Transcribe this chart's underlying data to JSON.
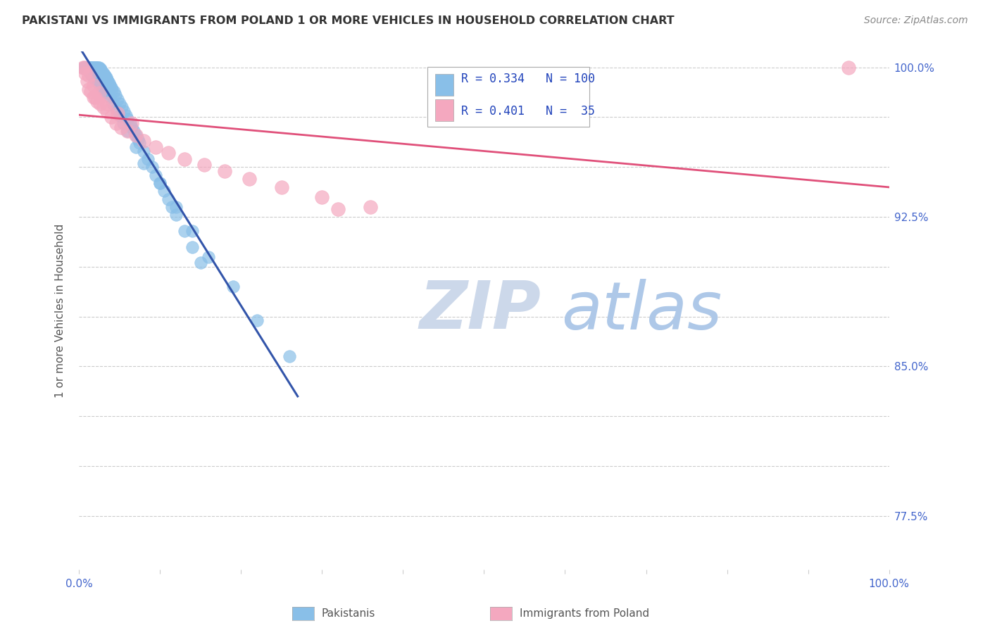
{
  "title": "PAKISTANI VS IMMIGRANTS FROM POLAND 1 OR MORE VEHICLES IN HOUSEHOLD CORRELATION CHART",
  "source": "Source: ZipAtlas.com",
  "ylabel": "1 or more Vehicles in Household",
  "xlim": [
    0.0,
    1.0
  ],
  "ylim": [
    0.748,
    1.008
  ],
  "ytick_vals": [
    0.775,
    0.8,
    0.825,
    0.85,
    0.875,
    0.9,
    0.925,
    0.95,
    0.975,
    1.0
  ],
  "ytick_labels": [
    "77.5%",
    "",
    "",
    "85.0%",
    "",
    "",
    "92.5%",
    "",
    "",
    "100.0%"
  ],
  "r_blue": 0.334,
  "n_blue": 100,
  "r_pink": 0.401,
  "n_pink": 35,
  "dot_color_blue": "#89bfe8",
  "dot_color_pink": "#f4a8bf",
  "line_color_blue": "#3355aa",
  "line_color_pink": "#e0507a",
  "legend_label_blue": "Pakistanis",
  "legend_label_pink": "Immigrants from Poland",
  "background_color": "#ffffff",
  "watermark_zip": "#ccd8ea",
  "watermark_atlas": "#aec8e8",
  "blue_x": [
    0.005,
    0.007,
    0.008,
    0.009,
    0.01,
    0.01,
    0.01,
    0.011,
    0.012,
    0.013,
    0.013,
    0.014,
    0.015,
    0.015,
    0.016,
    0.017,
    0.018,
    0.018,
    0.019,
    0.02,
    0.02,
    0.021,
    0.022,
    0.022,
    0.023,
    0.024,
    0.025,
    0.025,
    0.026,
    0.027,
    0.028,
    0.028,
    0.029,
    0.03,
    0.031,
    0.032,
    0.033,
    0.034,
    0.035,
    0.036,
    0.037,
    0.038,
    0.04,
    0.041,
    0.043,
    0.045,
    0.048,
    0.05,
    0.053,
    0.056,
    0.058,
    0.06,
    0.063,
    0.065,
    0.068,
    0.07,
    0.073,
    0.075,
    0.08,
    0.085,
    0.09,
    0.095,
    0.1,
    0.105,
    0.11,
    0.115,
    0.12,
    0.13,
    0.14,
    0.15,
    0.006,
    0.008,
    0.01,
    0.012,
    0.014,
    0.016,
    0.018,
    0.02,
    0.022,
    0.024,
    0.026,
    0.028,
    0.03,
    0.032,
    0.035,
    0.038,
    0.042,
    0.046,
    0.05,
    0.055,
    0.06,
    0.07,
    0.08,
    0.1,
    0.12,
    0.14,
    0.16,
    0.19,
    0.22,
    0.26
  ],
  "blue_y": [
    1.0,
    1.0,
    1.0,
    1.0,
    1.0,
    1.0,
    1.0,
    1.0,
    1.0,
    1.0,
    1.0,
    1.0,
    1.0,
    1.0,
    1.0,
    1.0,
    1.0,
    1.0,
    1.0,
    1.0,
    1.0,
    1.0,
    1.0,
    1.0,
    1.0,
    1.0,
    1.0,
    0.999,
    0.999,
    0.999,
    0.998,
    0.998,
    0.997,
    0.997,
    0.996,
    0.996,
    0.995,
    0.995,
    0.994,
    0.993,
    0.992,
    0.991,
    0.99,
    0.989,
    0.988,
    0.986,
    0.984,
    0.982,
    0.98,
    0.978,
    0.976,
    0.974,
    0.972,
    0.97,
    0.968,
    0.966,
    0.964,
    0.962,
    0.958,
    0.954,
    0.95,
    0.946,
    0.942,
    0.938,
    0.934,
    0.93,
    0.926,
    0.918,
    0.91,
    0.902,
    1.0,
    1.0,
    0.999,
    0.998,
    0.997,
    0.996,
    0.995,
    0.994,
    0.993,
    0.992,
    0.991,
    0.99,
    0.989,
    0.988,
    0.987,
    0.985,
    0.982,
    0.979,
    0.976,
    0.972,
    0.968,
    0.96,
    0.952,
    0.942,
    0.93,
    0.918,
    0.905,
    0.89,
    0.873,
    0.855
  ],
  "pink_x": [
    0.005,
    0.008,
    0.01,
    0.012,
    0.015,
    0.018,
    0.02,
    0.023,
    0.026,
    0.03,
    0.035,
    0.04,
    0.046,
    0.052,
    0.06,
    0.07,
    0.08,
    0.095,
    0.11,
    0.13,
    0.155,
    0.18,
    0.21,
    0.25,
    0.3,
    0.36,
    0.007,
    0.012,
    0.018,
    0.025,
    0.035,
    0.048,
    0.065,
    0.32,
    0.95
  ],
  "pink_y": [
    1.0,
    0.997,
    0.993,
    0.989,
    0.988,
    0.985,
    0.985,
    0.983,
    0.982,
    0.98,
    0.978,
    0.975,
    0.972,
    0.97,
    0.968,
    0.966,
    0.963,
    0.96,
    0.957,
    0.954,
    0.951,
    0.948,
    0.944,
    0.94,
    0.935,
    0.93,
    1.0,
    0.996,
    0.991,
    0.987,
    0.982,
    0.977,
    0.972,
    0.929,
    1.0
  ]
}
